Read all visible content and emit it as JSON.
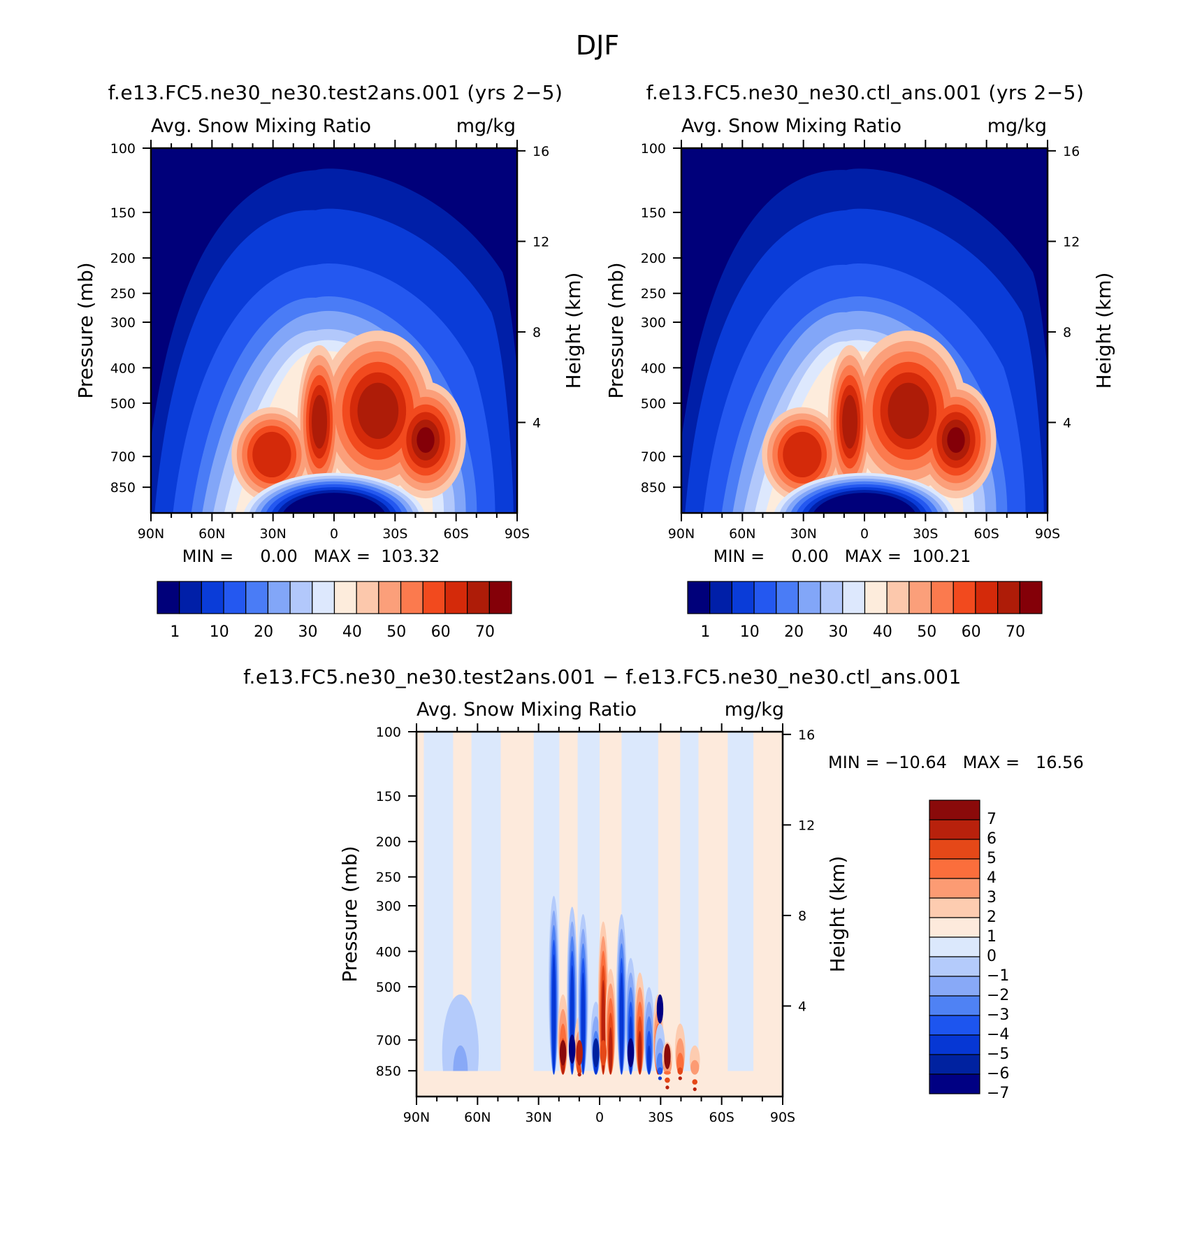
{
  "figure": {
    "title": "DJF",
    "diff_title": "f.e13.FC5.ne30_ne30.test2ans.001 − f.e13.FC5.ne30_ne30.ctl_ans.001"
  },
  "chart_data": [
    {
      "type": "heatmap",
      "panel": "test",
      "title": "f.e13.FC5.ne30_ne30.test2ans.001 (yrs 2−5)",
      "left_label": "Avg. Snow Mixing Ratio",
      "right_label": "mg/kg",
      "xlabel": "",
      "ylabel": "Pressure (mb)",
      "y2label": "Height (km)",
      "x_ticks": [
        "90N",
        "60N",
        "30N",
        "0",
        "30S",
        "60S",
        "90S"
      ],
      "xlim": [
        -90,
        90
      ],
      "y_ticks": [
        100,
        150,
        200,
        250,
        300,
        400,
        500,
        700,
        850
      ],
      "ylim": [
        100,
        1000
      ],
      "y2_ticks": [
        16,
        12,
        8,
        4
      ],
      "min_text": "MIN =     0.00   MAX =  103.32",
      "min": 0.0,
      "max": 103.32,
      "colorbar_ticks": [
        "1",
        "10",
        "20",
        "30",
        "40",
        "50",
        "60",
        "70"
      ],
      "colorbar_levels": [
        1,
        5,
        10,
        15,
        20,
        25,
        30,
        35,
        40,
        45,
        50,
        55,
        60,
        65,
        70
      ]
    },
    {
      "type": "heatmap",
      "panel": "control",
      "title": "f.e13.FC5.ne30_ne30.ctl_ans.001 (yrs 2−5)",
      "left_label": "Avg. Snow Mixing Ratio",
      "right_label": "mg/kg",
      "xlabel": "",
      "ylabel": "Pressure (mb)",
      "y2label": "Height (km)",
      "x_ticks": [
        "90N",
        "60N",
        "30N",
        "0",
        "30S",
        "60S",
        "90S"
      ],
      "xlim": [
        -90,
        90
      ],
      "y_ticks": [
        100,
        150,
        200,
        250,
        300,
        400,
        500,
        700,
        850
      ],
      "ylim": [
        100,
        1000
      ],
      "y2_ticks": [
        16,
        12,
        8,
        4
      ],
      "min_text": "MIN =     0.00   MAX =  100.21",
      "min": 0.0,
      "max": 100.21,
      "colorbar_ticks": [
        "1",
        "10",
        "20",
        "30",
        "40",
        "50",
        "60",
        "70"
      ],
      "colorbar_levels": [
        1,
        5,
        10,
        15,
        20,
        25,
        30,
        35,
        40,
        45,
        50,
        55,
        60,
        65,
        70
      ]
    },
    {
      "type": "heatmap",
      "panel": "difference",
      "title": "",
      "left_label": "Avg. Snow Mixing Ratio",
      "right_label": "mg/kg",
      "xlabel": "",
      "ylabel": "Pressure (mb)",
      "y2label": "Height (km)",
      "x_ticks": [
        "90N",
        "60N",
        "30N",
        "0",
        "30S",
        "60S",
        "90S"
      ],
      "xlim": [
        -90,
        90
      ],
      "y_ticks": [
        100,
        150,
        200,
        250,
        300,
        400,
        500,
        700,
        850
      ],
      "ylim": [
        100,
        1000
      ],
      "y2_ticks": [
        16,
        12,
        8,
        4
      ],
      "min_text": "MIN = −10.64   MAX =   16.56",
      "min": -10.64,
      "max": 16.56,
      "colorbar_ticks": [
        "7",
        "6",
        "5",
        "4",
        "3",
        "2",
        "1",
        "0",
        "−1",
        "−2",
        "−3",
        "−4",
        "−5",
        "−6",
        "−7"
      ],
      "colorbar_levels": [
        7,
        6,
        5,
        4,
        3,
        2,
        1,
        0,
        -1,
        -2,
        -3,
        -4,
        -5,
        -6,
        -7
      ]
    }
  ],
  "colors": {
    "abs_palette": [
      "#00007a",
      "#001fa8",
      "#0a3cd8",
      "#2458f0",
      "#4a7cf6",
      "#82a6f8",
      "#b2c8fb",
      "#dde8fd",
      "#fdecdc",
      "#fcc8ac",
      "#fb9f7a",
      "#fb7a4e",
      "#f24a1e",
      "#d42a0a",
      "#ae1c08",
      "#840008"
    ],
    "diff_palette": [
      "#8a0a0a",
      "#b8210c",
      "#e54818",
      "#fb6e3c",
      "#fc9b73",
      "#fdccb0",
      "#fdeadc",
      "#dbe8fc",
      "#b4cbfb",
      "#88a9f7",
      "#4f82f4",
      "#1d55ef",
      "#0637d4",
      "#0022a0",
      "#000083"
    ]
  }
}
